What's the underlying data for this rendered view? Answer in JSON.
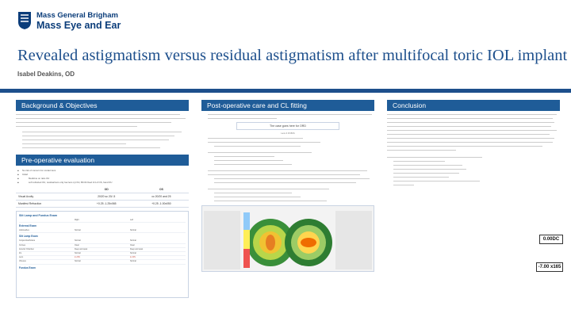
{
  "header": {
    "logo_line1": "Mass General Brigham",
    "logo_line2": "Mass Eye and Ear",
    "title": "Revealed astigmatism versus residual astigmatism after multifocal toric IOL implant",
    "author": "Isabel Deakins, OD"
  },
  "colors": {
    "brand": "#1d4f8c",
    "section_header": "#1f5c98"
  },
  "sections": {
    "background": {
      "heading": "Background & Objectives"
    },
    "preop": {
      "heading": "Pre-operative evaluation",
      "bullets": [
        "No risk of concern for contact lens",
        "Initial:",
        "Medicine on ratio OU",
        "soft refracted OU, residual lens only low lens cyl OU, BCVA fixed 1/4 of OS, hand OU"
      ],
      "va_table": {
        "col_od": "OD",
        "col_os": "OS",
        "rows": [
          {
            "label": "Visual Acuity",
            "od": "20/20 sc 20/..5",
            "os": "cc 20/20 and 25"
          },
          {
            "label": "Manifest Refraction",
            "od": "+0.25 -1.25x065",
            "os": "+0.25 -1.00x050"
          }
        ]
      },
      "exam": {
        "title": "Slit Lamp and Fundus Exam",
        "external": "External Exam",
        "slit": "Slit Lamp Exam",
        "fundus": "Fundus Exam",
        "col_right": "Right",
        "col_left": "Left",
        "rows": [
          {
            "label": "Lids/Lashes",
            "right": "Normal",
            "left": "Normal"
          },
          {
            "label": "Conjunctiva/Sclera",
            "right": "Normal",
            "left": "Normal"
          },
          {
            "label": "Cornea",
            "right": "Clear",
            "left": "Clear"
          },
          {
            "label": "Anterior Chamber",
            "right": "Deep and quiet",
            "left": "Deep and quiet"
          },
          {
            "label": "Iris",
            "right": "Normal",
            "left": "Normal"
          },
          {
            "label": "Lens",
            "right": "2+ NS",
            "left": "2+ NS"
          },
          {
            "label": "Vitreous",
            "right": "Normal",
            "left": "Normal"
          }
        ]
      }
    },
    "postop": {
      "heading": "Post-operative care and CL fitting",
      "callout": "The case goes here for ORD",
      "callout_caption": "Lens 3 15 BKS"
    },
    "conclusion": {
      "heading": "Conclusion"
    }
  },
  "side_values": {
    "box1": "0.00DC",
    "box2": "-7.00 x165"
  }
}
